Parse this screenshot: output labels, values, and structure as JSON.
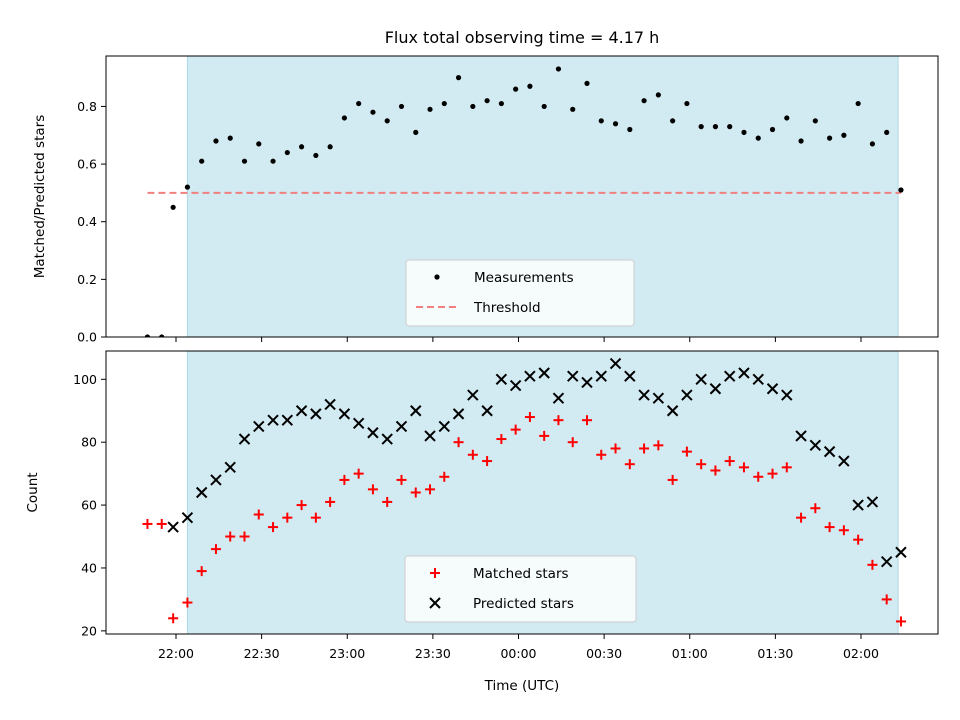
{
  "title": "Flux total observing time = 4.17 h",
  "colors": {
    "shade": "#add8e6",
    "measurement": "#000000",
    "threshold": "#f08080",
    "matched": "#ff0000",
    "predicted": "#000000"
  },
  "chart_data": [
    {
      "type": "scatter",
      "ylabel": "Matched/Predicted stars",
      "xlabel": "",
      "ylim": [
        0,
        0.975
      ],
      "yticks": [
        "0.0",
        "0.2",
        "0.4",
        "0.6",
        "0.8"
      ],
      "legend_position": "lower center",
      "shaded_interval": [
        "22:04",
        "02:13"
      ],
      "x": [
        "21:50",
        "21:55",
        "21:59",
        "22:04",
        "22:09",
        "22:14",
        "22:19",
        "22:24",
        "22:29",
        "22:34",
        "22:39",
        "22:44",
        "22:49",
        "22:54",
        "22:59",
        "23:04",
        "23:09",
        "23:14",
        "23:19",
        "23:24",
        "23:29",
        "23:34",
        "23:39",
        "23:44",
        "23:49",
        "23:54",
        "23:59",
        "00:04",
        "00:09",
        "00:14",
        "00:19",
        "00:24",
        "00:29",
        "00:34",
        "00:39",
        "00:44",
        "00:49",
        "00:54",
        "00:59",
        "01:04",
        "01:09",
        "01:14",
        "01:19",
        "01:24",
        "01:29",
        "01:34",
        "01:39",
        "01:44",
        "01:49",
        "01:54",
        "01:59",
        "02:04",
        "02:09",
        "02:14"
      ],
      "series": [
        {
          "name": "Measurements",
          "marker": "dot",
          "values": [
            0.0,
            0.0,
            0.45,
            0.52,
            0.61,
            0.68,
            0.69,
            0.61,
            0.67,
            0.61,
            0.64,
            0.66,
            0.63,
            0.66,
            0.76,
            0.81,
            0.78,
            0.75,
            0.8,
            0.71,
            0.79,
            0.81,
            0.9,
            0.8,
            0.82,
            0.81,
            0.86,
            0.87,
            0.8,
            0.93,
            0.79,
            0.88,
            0.75,
            0.74,
            0.72,
            0.82,
            0.84,
            0.75,
            0.81,
            0.73,
            0.73,
            0.73,
            0.71,
            0.69,
            0.72,
            0.76,
            0.68,
            0.75,
            0.69,
            0.7,
            0.81,
            0.67,
            0.71,
            0.51
          ]
        },
        {
          "name": "Threshold",
          "marker": "dashed-line",
          "x": [
            "21:50",
            "02:14"
          ],
          "values": [
            0.5,
            0.5
          ]
        }
      ]
    },
    {
      "type": "scatter",
      "ylabel": "Count",
      "xlabel": "Time (UTC)",
      "ylim": [
        19,
        109
      ],
      "yticks": [
        "20",
        "40",
        "60",
        "80",
        "100"
      ],
      "xticks": [
        "22:00",
        "22:30",
        "23:00",
        "23:30",
        "00:00",
        "00:30",
        "01:00",
        "01:30",
        "02:00"
      ],
      "legend_position": "lower center",
      "shaded_interval": [
        "22:04",
        "02:13"
      ],
      "series": [
        {
          "name": "Matched stars",
          "marker": "plus",
          "x": [
            "21:50",
            "21:55",
            "21:59",
            "22:04",
            "22:09",
            "22:14",
            "22:19",
            "22:24",
            "22:29",
            "22:34",
            "22:39",
            "22:44",
            "22:49",
            "22:54",
            "22:59",
            "23:04",
            "23:09",
            "23:14",
            "23:19",
            "23:24",
            "23:29",
            "23:34",
            "23:39",
            "23:44",
            "23:49",
            "23:54",
            "23:59",
            "00:04",
            "00:09",
            "00:14",
            "00:19",
            "00:24",
            "00:29",
            "00:34",
            "00:39",
            "00:44",
            "00:49",
            "00:54",
            "00:59",
            "01:04",
            "01:09",
            "01:14",
            "01:19",
            "01:24",
            "01:29",
            "01:34",
            "01:39",
            "01:44",
            "01:49",
            "01:54",
            "01:59",
            "02:04",
            "02:09",
            "02:14"
          ],
          "values": [
            54,
            54,
            24,
            29,
            39,
            46,
            50,
            50,
            57,
            53,
            56,
            60,
            56,
            61,
            68,
            70,
            65,
            61,
            68,
            64,
            65,
            69,
            80,
            76,
            74,
            81,
            84,
            88,
            82,
            87,
            80,
            87,
            76,
            78,
            73,
            78,
            79,
            68,
            77,
            73,
            71,
            74,
            72,
            69,
            70,
            72,
            56,
            59,
            53,
            52,
            49,
            41,
            30,
            23
          ]
        },
        {
          "name": "Predicted stars",
          "marker": "x",
          "x": [
            "21:59",
            "22:04",
            "22:09",
            "22:14",
            "22:19",
            "22:24",
            "22:29",
            "22:34",
            "22:39",
            "22:44",
            "22:49",
            "22:54",
            "22:59",
            "23:04",
            "23:09",
            "23:14",
            "23:19",
            "23:24",
            "23:29",
            "23:34",
            "23:39",
            "23:44",
            "23:49",
            "23:54",
            "23:59",
            "00:04",
            "00:09",
            "00:14",
            "00:19",
            "00:24",
            "00:29",
            "00:34",
            "00:39",
            "00:44",
            "00:49",
            "00:54",
            "00:59",
            "01:04",
            "01:09",
            "01:14",
            "01:19",
            "01:24",
            "01:29",
            "01:34",
            "01:39",
            "01:44",
            "01:49",
            "01:54",
            "01:59",
            "02:04",
            "02:09",
            "02:14"
          ],
          "values": [
            53,
            56,
            64,
            68,
            72,
            81,
            85,
            87,
            87,
            90,
            89,
            92,
            89,
            86,
            83,
            81,
            85,
            90,
            82,
            85,
            89,
            95,
            90,
            100,
            98,
            101,
            102,
            94,
            101,
            99,
            101,
            105,
            101,
            95,
            94,
            90,
            95,
            100,
            97,
            101,
            102,
            100,
            97,
            95,
            82,
            79,
            77,
            74,
            60,
            61,
            42,
            45
          ]
        }
      ]
    }
  ]
}
